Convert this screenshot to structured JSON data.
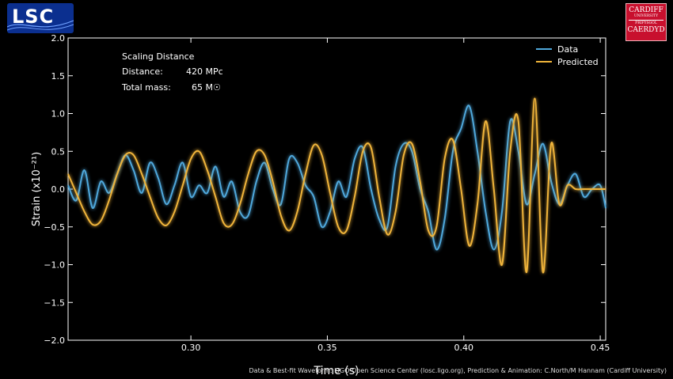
{
  "logos": {
    "left": "LSC",
    "right_lines": [
      "CARDIFF",
      "UNIVERSITY",
      "PRIFYSGOL",
      "CAERDYD"
    ]
  },
  "info": {
    "heading": "Scaling Distance",
    "distance_label": "Distance:",
    "distance_value": "420 MPc",
    "mass_label": "Total mass:",
    "mass_value": "65 M☉"
  },
  "credit": "Data & Best-fit Waveform: LIGO Open Science Center (losc.ligo.org), Prediction & Animation: C.North/M Hannam (Cardiff University)",
  "chart_data": {
    "type": "line",
    "xlabel": "Time (s)",
    "ylabel": "Strain (x10⁻²¹)",
    "xlim": [
      0.255,
      0.452
    ],
    "ylim": [
      -2.0,
      2.0
    ],
    "x_ticks": [
      0.3,
      0.35,
      0.4,
      0.45
    ],
    "x_tick_labels": [
      "0.30",
      "0.35",
      "0.40",
      "0.45"
    ],
    "y_ticks": [
      2.0,
      1.5,
      1.0,
      0.5,
      0.0,
      -0.5,
      -1.0,
      -1.5,
      -2.0
    ],
    "y_tick_labels": [
      "2.0",
      "1.5",
      "1.0",
      "0.5",
      "0.0",
      "−0.5",
      "−1.0",
      "−1.5",
      "−2.0"
    ],
    "legend_position": "top-right",
    "grid": false,
    "series": [
      {
        "name": "Data",
        "color": "#4fa8dc",
        "x": [
          0.255,
          0.258,
          0.261,
          0.264,
          0.267,
          0.27,
          0.273,
          0.276,
          0.279,
          0.282,
          0.285,
          0.288,
          0.291,
          0.294,
          0.297,
          0.3,
          0.303,
          0.306,
          0.309,
          0.312,
          0.315,
          0.318,
          0.321,
          0.324,
          0.327,
          0.33,
          0.333,
          0.336,
          0.339,
          0.342,
          0.345,
          0.348,
          0.351,
          0.354,
          0.357,
          0.36,
          0.363,
          0.366,
          0.369,
          0.372,
          0.375,
          0.378,
          0.381,
          0.384,
          0.387,
          0.39,
          0.393,
          0.396,
          0.399,
          0.402,
          0.405,
          0.408,
          0.411,
          0.414,
          0.417,
          0.42,
          0.423,
          0.426,
          0.429,
          0.432,
          0.435,
          0.438,
          0.441,
          0.444,
          0.447,
          0.45,
          0.452
        ],
        "y": [
          0.05,
          -0.15,
          0.25,
          -0.25,
          0.1,
          -0.05,
          0.2,
          0.45,
          0.25,
          -0.05,
          0.35,
          0.15,
          -0.2,
          0.05,
          0.35,
          -0.1,
          0.05,
          -0.05,
          0.3,
          -0.1,
          0.1,
          -0.3,
          -0.35,
          0.1,
          0.35,
          0.0,
          -0.2,
          0.4,
          0.35,
          0.05,
          -0.1,
          -0.5,
          -0.3,
          0.1,
          -0.1,
          0.4,
          0.55,
          0.0,
          -0.4,
          -0.5,
          0.3,
          0.6,
          0.5,
          0.0,
          -0.3,
          -0.8,
          -0.4,
          0.5,
          0.8,
          1.1,
          0.5,
          -0.3,
          -0.8,
          -0.3,
          0.9,
          0.5,
          -0.2,
          0.2,
          0.6,
          0.1,
          -0.2,
          0.05,
          0.2,
          -0.1,
          0.0,
          0.05,
          -0.25
        ]
      },
      {
        "name": "Predicted",
        "color": "#f0b43a",
        "x": [
          0.255,
          0.258,
          0.261,
          0.264,
          0.267,
          0.27,
          0.273,
          0.276,
          0.279,
          0.282,
          0.285,
          0.288,
          0.291,
          0.294,
          0.297,
          0.3,
          0.303,
          0.306,
          0.309,
          0.312,
          0.315,
          0.318,
          0.321,
          0.324,
          0.327,
          0.33,
          0.333,
          0.336,
          0.339,
          0.342,
          0.345,
          0.348,
          0.351,
          0.354,
          0.357,
          0.36,
          0.363,
          0.366,
          0.369,
          0.372,
          0.375,
          0.378,
          0.381,
          0.384,
          0.387,
          0.39,
          0.393,
          0.396,
          0.399,
          0.402,
          0.405,
          0.408,
          0.411,
          0.414,
          0.417,
          0.42,
          0.423,
          0.426,
          0.429,
          0.432,
          0.435,
          0.438,
          0.441,
          0.444,
          0.447,
          0.45,
          0.452
        ],
        "y": [
          0.2,
          -0.05,
          -0.3,
          -0.47,
          -0.42,
          -0.15,
          0.2,
          0.45,
          0.45,
          0.2,
          -0.1,
          -0.38,
          -0.48,
          -0.3,
          0.05,
          0.4,
          0.5,
          0.25,
          -0.1,
          -0.45,
          -0.47,
          -0.2,
          0.2,
          0.5,
          0.45,
          0.1,
          -0.35,
          -0.55,
          -0.3,
          0.2,
          0.58,
          0.45,
          -0.05,
          -0.5,
          -0.55,
          -0.1,
          0.5,
          0.55,
          -0.1,
          -0.6,
          -0.3,
          0.45,
          0.6,
          0.1,
          -0.55,
          -0.5,
          0.4,
          0.65,
          0.0,
          -0.75,
          -0.2,
          0.9,
          0.0,
          -1.0,
          0.5,
          0.9,
          -1.1,
          1.2,
          -1.1,
          0.6,
          -0.2,
          0.05,
          0.0,
          0.0,
          0.0,
          0.0,
          0.0
        ]
      }
    ]
  }
}
